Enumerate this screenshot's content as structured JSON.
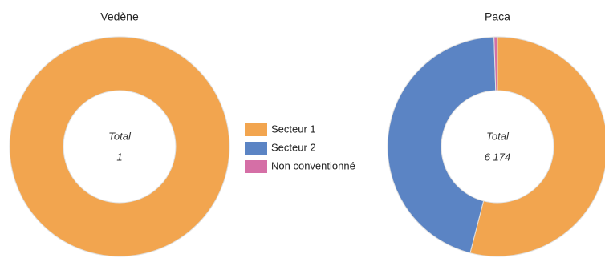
{
  "chart_data": [
    {
      "type": "donut",
      "title": "Vedène",
      "center_label": "Total",
      "total": "1",
      "categories": [
        "Secteur 1",
        "Secteur 2",
        "Non conventionné"
      ],
      "values": [
        1,
        0,
        0
      ],
      "colors": [
        "#f2a54f",
        "#5b84c4",
        "#d56fa6"
      ]
    },
    {
      "type": "donut",
      "title": "Paca",
      "center_label": "Total",
      "total": "6 174",
      "categories": [
        "Secteur 1",
        "Secteur 2",
        "Non conventionné"
      ],
      "values": [
        3334,
        2809,
        31
      ],
      "colors": [
        "#f2a54f",
        "#5b84c4",
        "#d56fa6"
      ]
    }
  ]
}
